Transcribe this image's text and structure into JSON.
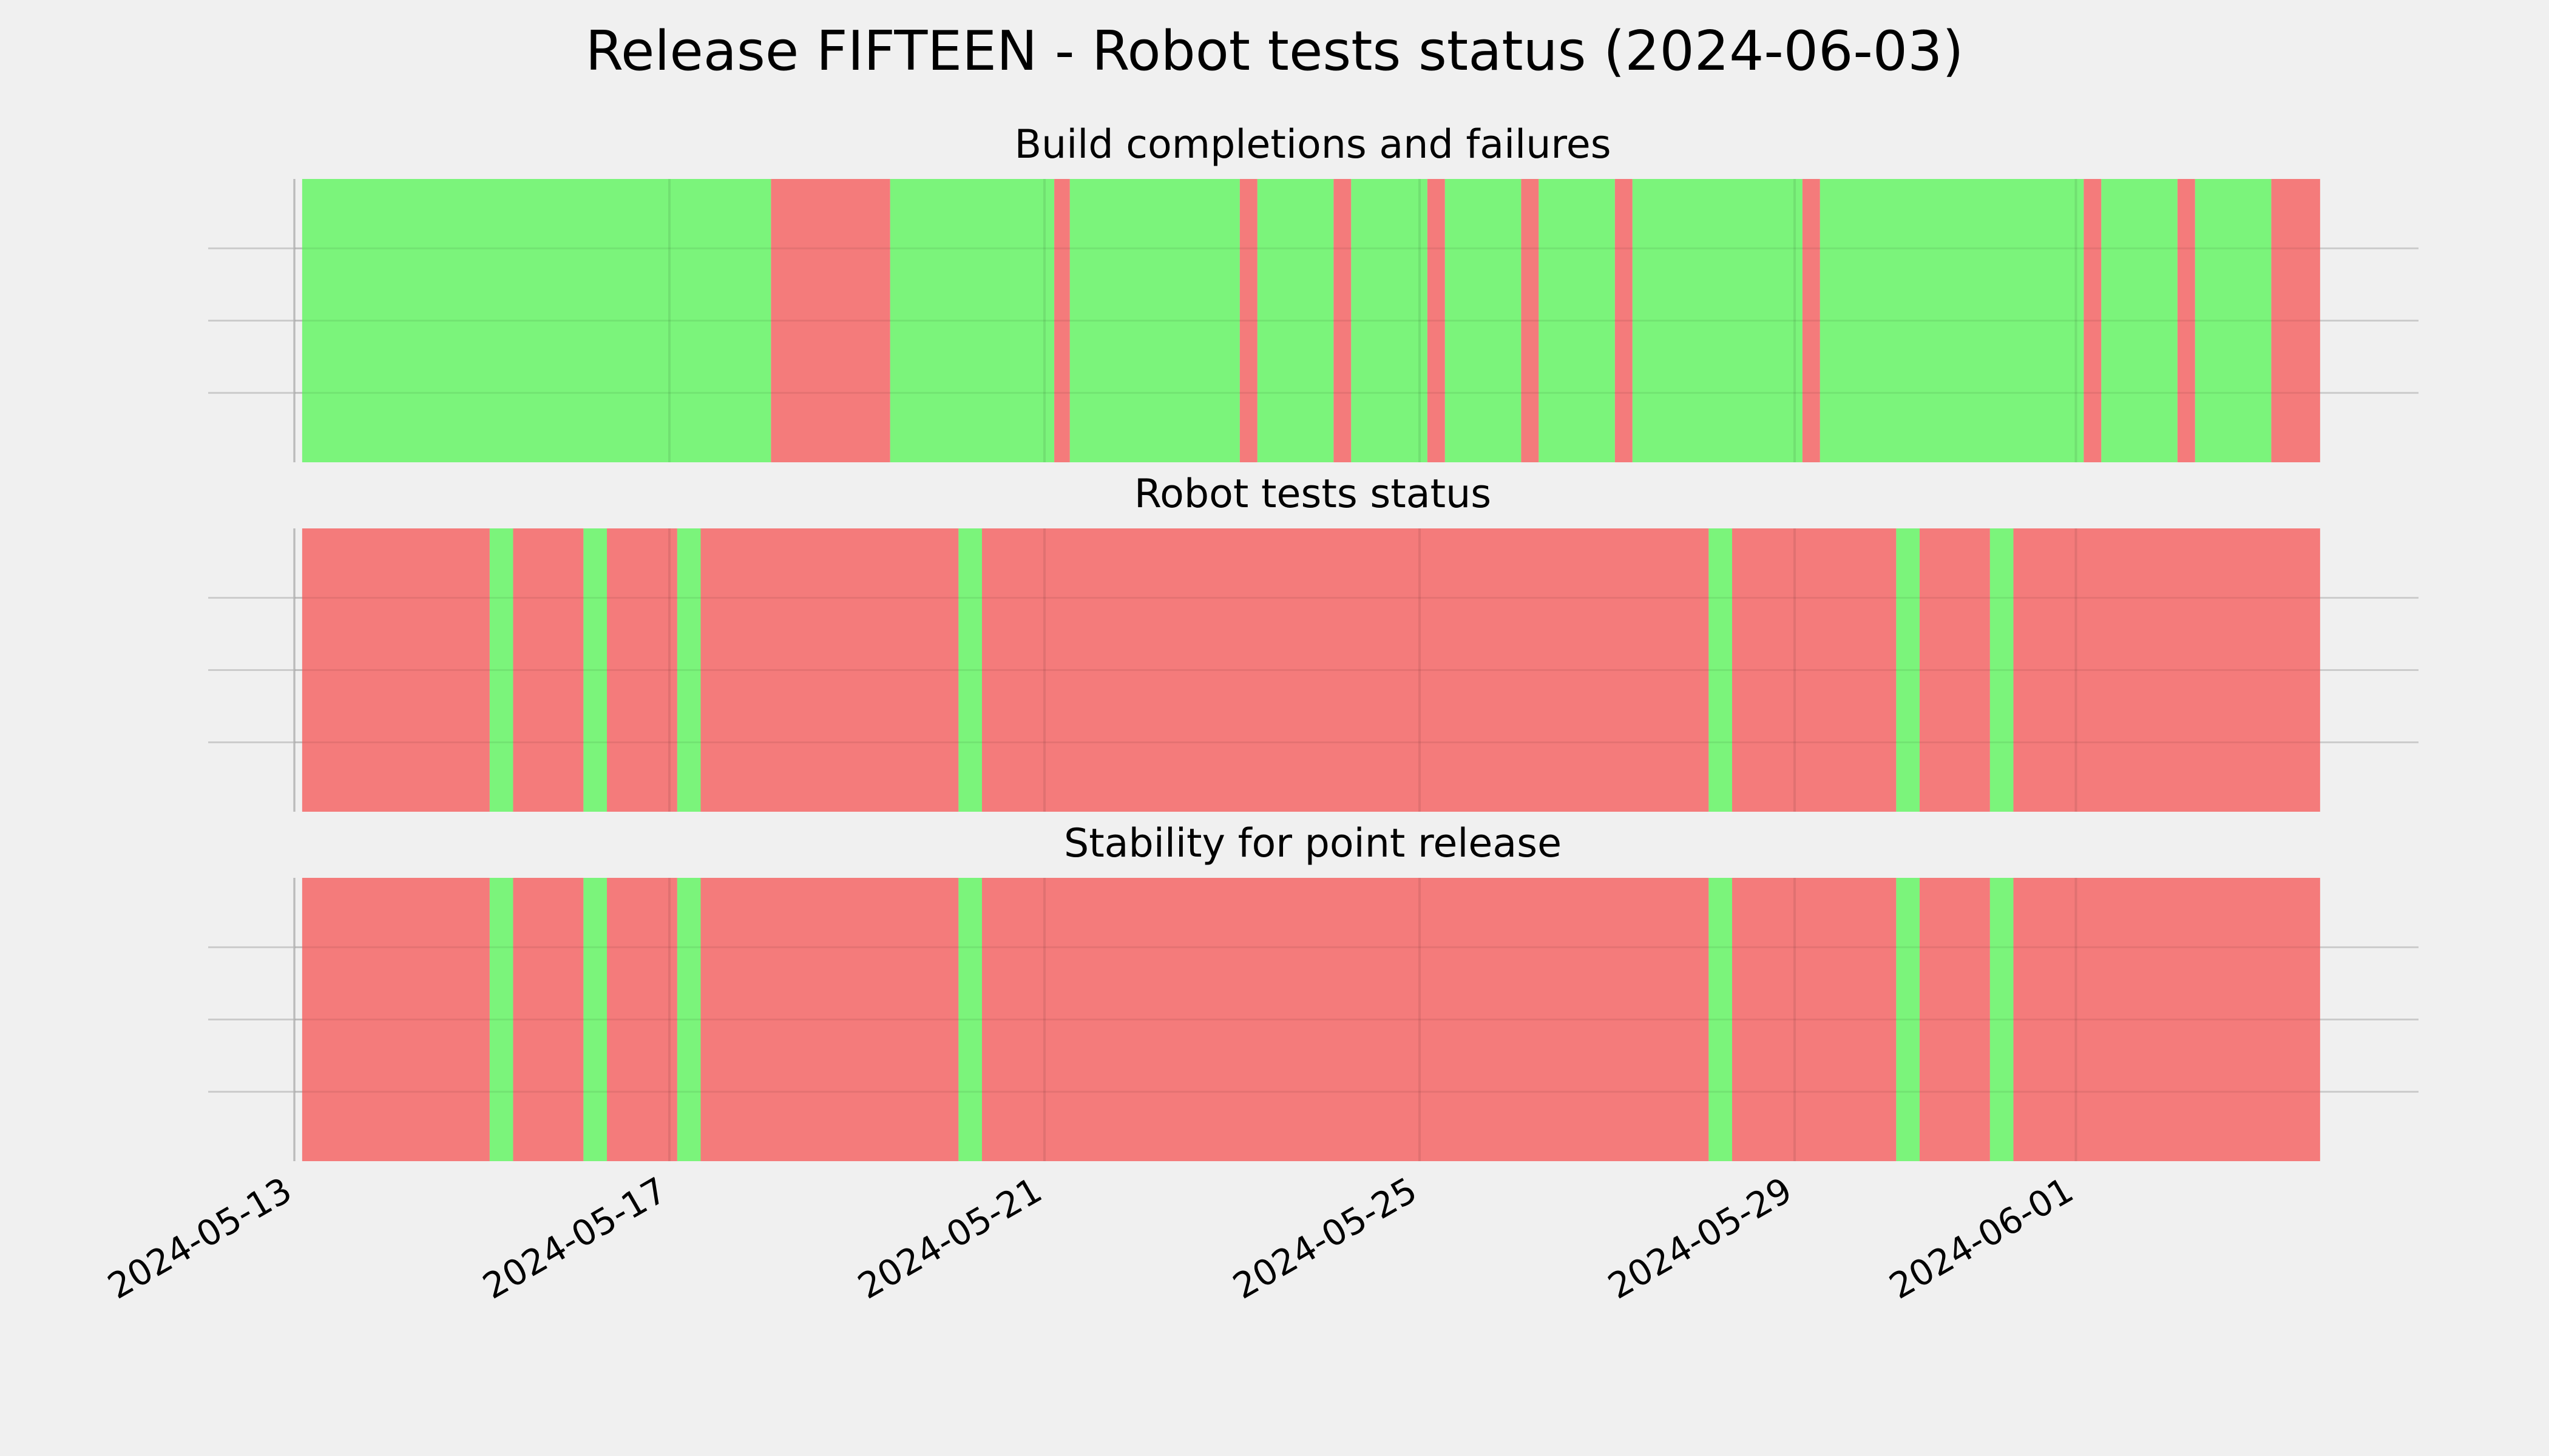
{
  "colors": {
    "background": "#f0f0f0",
    "pass": "#77f477",
    "fail": "#f47777",
    "grid": "#cbcbcb"
  },
  "figure_title": "Release FIFTEEN - Robot tests status (2024-06-03)",
  "chart_data": {
    "type": "timeline",
    "x_axis_type": "date",
    "xlim": [
      "2024-05-13",
      "2024-06-03"
    ],
    "xticks": [
      "2024-05-13",
      "2024-05-17",
      "2024-05-21",
      "2024-05-25",
      "2024-05-29",
      "2024-06-01"
    ],
    "grid": true,
    "panels": [
      {
        "title": "Build completions and failures",
        "segments": [
          {
            "start": "2024-05-13T02:00",
            "end": "2024-05-18T02:00",
            "status": "pass"
          },
          {
            "start": "2024-05-18T02:00",
            "end": "2024-05-19T08:30",
            "status": "fail"
          },
          {
            "start": "2024-05-19T08:30",
            "end": "2024-05-21T02:30",
            "status": "pass"
          },
          {
            "start": "2024-05-21T02:30",
            "end": "2024-05-21T06:30",
            "status": "fail"
          },
          {
            "start": "2024-05-21T06:30",
            "end": "2024-05-23T02:00",
            "status": "pass"
          },
          {
            "start": "2024-05-23T02:00",
            "end": "2024-05-23T06:30",
            "status": "fail"
          },
          {
            "start": "2024-05-23T06:30",
            "end": "2024-05-24T02:00",
            "status": "pass"
          },
          {
            "start": "2024-05-24T02:00",
            "end": "2024-05-24T06:30",
            "status": "fail"
          },
          {
            "start": "2024-05-24T06:30",
            "end": "2024-05-25T02:00",
            "status": "pass"
          },
          {
            "start": "2024-05-25T02:00",
            "end": "2024-05-25T06:30",
            "status": "fail"
          },
          {
            "start": "2024-05-25T06:30",
            "end": "2024-05-26T02:00",
            "status": "pass"
          },
          {
            "start": "2024-05-26T02:00",
            "end": "2024-05-26T06:30",
            "status": "fail"
          },
          {
            "start": "2024-05-26T06:30",
            "end": "2024-05-27T02:00",
            "status": "pass"
          },
          {
            "start": "2024-05-27T02:00",
            "end": "2024-05-27T06:30",
            "status": "fail"
          },
          {
            "start": "2024-05-27T06:30",
            "end": "2024-05-29T02:00",
            "status": "pass"
          },
          {
            "start": "2024-05-29T02:00",
            "end": "2024-05-29T06:30",
            "status": "fail"
          },
          {
            "start": "2024-05-29T06:30",
            "end": "2024-06-01T02:00",
            "status": "pass"
          },
          {
            "start": "2024-06-01T02:00",
            "end": "2024-06-01T06:30",
            "status": "fail"
          },
          {
            "start": "2024-06-01T06:30",
            "end": "2024-06-02T02:00",
            "status": "pass"
          },
          {
            "start": "2024-06-02T02:00",
            "end": "2024-06-02T06:30",
            "status": "fail"
          },
          {
            "start": "2024-06-02T06:30",
            "end": "2024-06-03T02:00",
            "status": "pass"
          },
          {
            "start": "2024-06-03T02:00",
            "end": "2024-06-03T14:30",
            "status": "fail"
          }
        ]
      },
      {
        "title": "Robot tests status",
        "segments": [
          {
            "start": "2024-05-13T02:00",
            "end": "2024-05-15T02:00",
            "status": "fail"
          },
          {
            "start": "2024-05-15T02:00",
            "end": "2024-05-15T08:00",
            "status": "pass"
          },
          {
            "start": "2024-05-15T08:00",
            "end": "2024-05-16T02:00",
            "status": "fail"
          },
          {
            "start": "2024-05-16T02:00",
            "end": "2024-05-16T08:00",
            "status": "pass"
          },
          {
            "start": "2024-05-16T08:00",
            "end": "2024-05-17T02:00",
            "status": "fail"
          },
          {
            "start": "2024-05-17T02:00",
            "end": "2024-05-17T08:00",
            "status": "pass"
          },
          {
            "start": "2024-05-17T08:00",
            "end": "2024-05-20T02:00",
            "status": "fail"
          },
          {
            "start": "2024-05-20T02:00",
            "end": "2024-05-20T08:00",
            "status": "pass"
          },
          {
            "start": "2024-05-20T08:00",
            "end": "2024-05-28T02:00",
            "status": "fail"
          },
          {
            "start": "2024-05-28T02:00",
            "end": "2024-05-28T08:00",
            "status": "pass"
          },
          {
            "start": "2024-05-28T08:00",
            "end": "2024-05-30T02:00",
            "status": "fail"
          },
          {
            "start": "2024-05-30T02:00",
            "end": "2024-05-30T08:00",
            "status": "pass"
          },
          {
            "start": "2024-05-30T08:00",
            "end": "2024-05-31T02:00",
            "status": "fail"
          },
          {
            "start": "2024-05-31T02:00",
            "end": "2024-05-31T08:00",
            "status": "pass"
          },
          {
            "start": "2024-05-31T08:00",
            "end": "2024-06-03T14:30",
            "status": "fail"
          }
        ]
      },
      {
        "title": "Stability for point release",
        "segments": [
          {
            "start": "2024-05-13T02:00",
            "end": "2024-05-15T02:00",
            "status": "fail"
          },
          {
            "start": "2024-05-15T02:00",
            "end": "2024-05-15T08:00",
            "status": "pass"
          },
          {
            "start": "2024-05-15T08:00",
            "end": "2024-05-16T02:00",
            "status": "fail"
          },
          {
            "start": "2024-05-16T02:00",
            "end": "2024-05-16T08:00",
            "status": "pass"
          },
          {
            "start": "2024-05-16T08:00",
            "end": "2024-05-17T02:00",
            "status": "fail"
          },
          {
            "start": "2024-05-17T02:00",
            "end": "2024-05-17T08:00",
            "status": "pass"
          },
          {
            "start": "2024-05-17T08:00",
            "end": "2024-05-20T02:00",
            "status": "fail"
          },
          {
            "start": "2024-05-20T02:00",
            "end": "2024-05-20T08:00",
            "status": "pass"
          },
          {
            "start": "2024-05-20T08:00",
            "end": "2024-05-28T02:00",
            "status": "fail"
          },
          {
            "start": "2024-05-28T02:00",
            "end": "2024-05-28T08:00",
            "status": "pass"
          },
          {
            "start": "2024-05-28T08:00",
            "end": "2024-05-30T02:00",
            "status": "fail"
          },
          {
            "start": "2024-05-30T02:00",
            "end": "2024-05-30T08:00",
            "status": "pass"
          },
          {
            "start": "2024-05-30T08:00",
            "end": "2024-05-31T02:00",
            "status": "fail"
          },
          {
            "start": "2024-05-31T02:00",
            "end": "2024-05-31T08:00",
            "status": "pass"
          },
          {
            "start": "2024-05-31T08:00",
            "end": "2024-06-03T14:30",
            "status": "fail"
          }
        ]
      }
    ]
  }
}
